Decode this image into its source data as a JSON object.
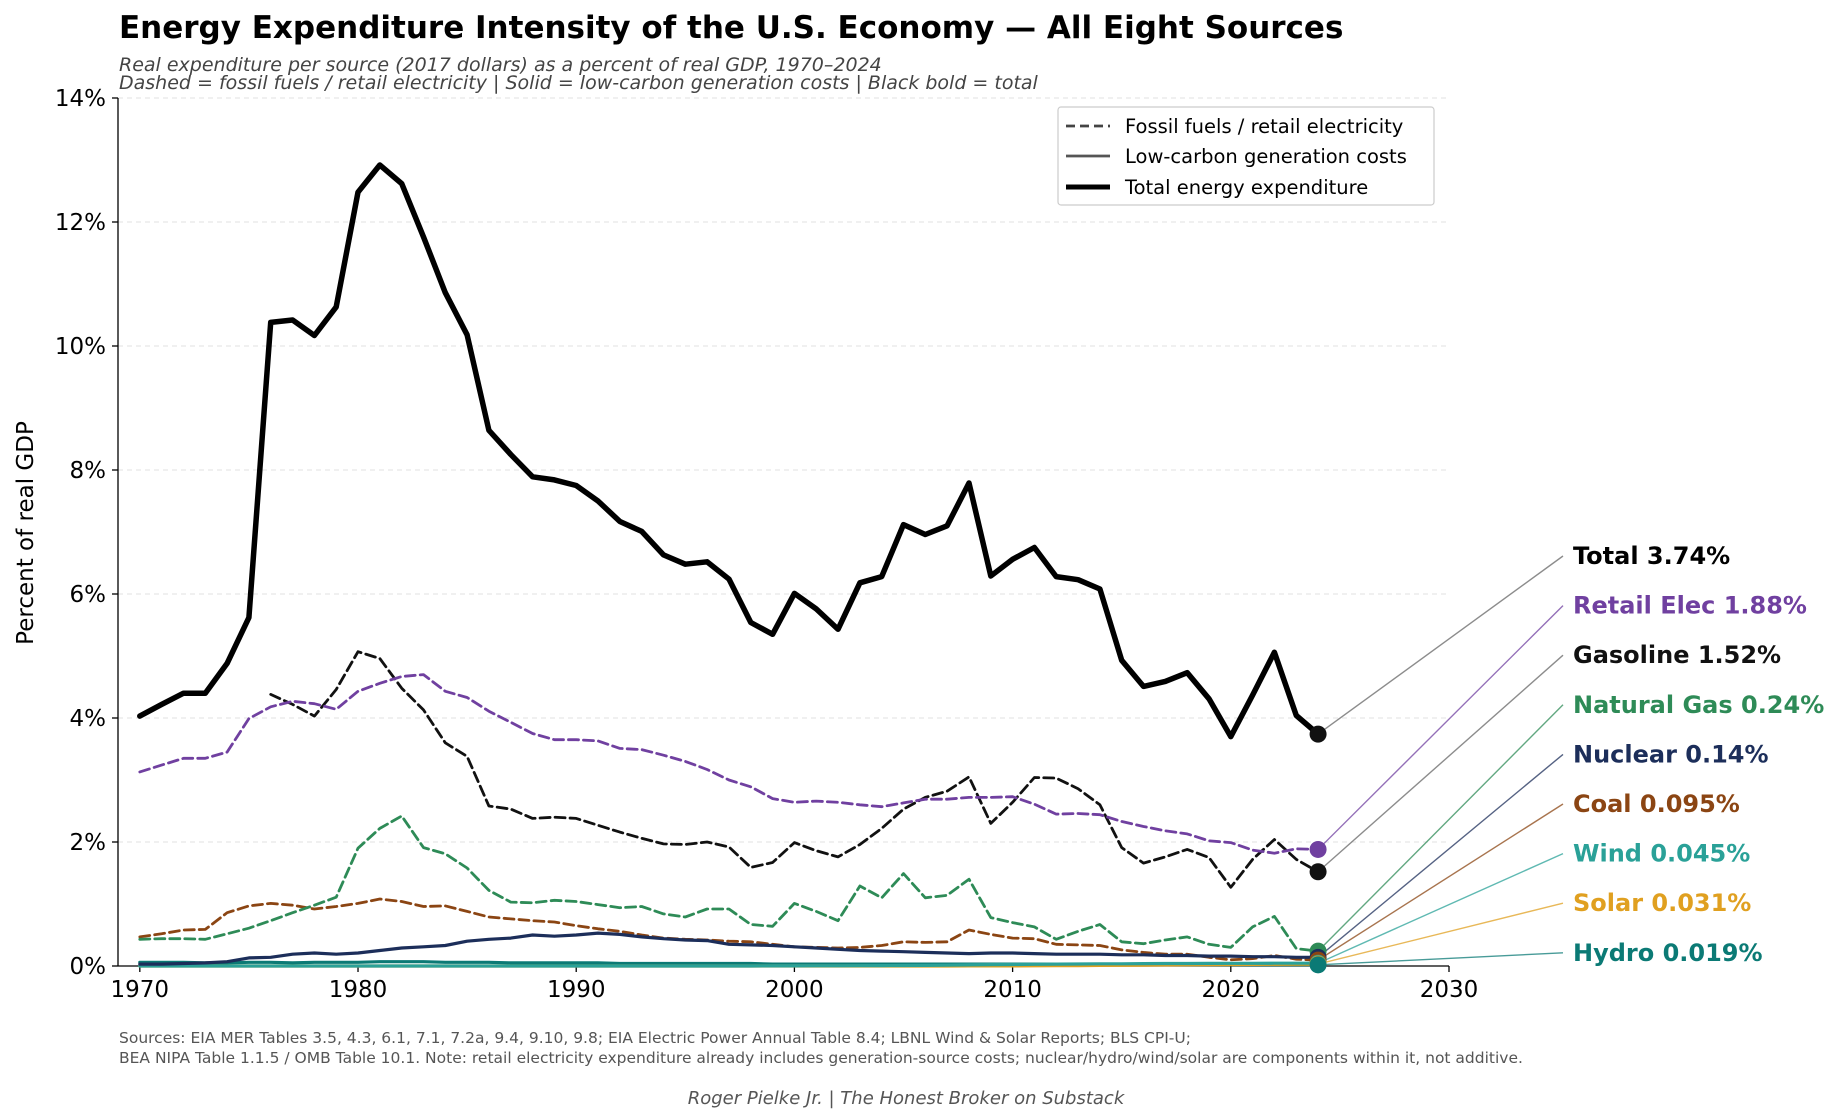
{
  "chart_data": {
    "type": "line",
    "title": "Energy Expenditure Intensity of the U.S. Economy — All Eight Sources",
    "subtitle_lines": [
      "Real expenditure per source (2017 dollars) as a percent of real GDP, 1970–2024",
      "Dashed = fossil fuels / retail electricity  |  Solid = low-carbon generation costs  |  Black bold = total"
    ],
    "xlabel": "",
    "ylabel": "Percent of real GDP",
    "xlim": [
      1969,
      2030
    ],
    "ylim": [
      0,
      14
    ],
    "x_ticks": [
      1970,
      1980,
      1990,
      2000,
      2010,
      2020,
      2030
    ],
    "x_tick_labels": [
      "1970",
      "1980",
      "1990",
      "2000",
      "2010",
      "2020",
      "2030"
    ],
    "y_ticks": [
      0,
      2,
      4,
      6,
      8,
      10,
      12,
      14
    ],
    "y_tick_labels": [
      "0%",
      "2%",
      "4%",
      "6%",
      "8%",
      "10%",
      "12%",
      "14%"
    ],
    "grid": "horizontal dashed",
    "legend_position": "top-right",
    "legend": [
      {
        "label": "Fossil fuels / retail electricity",
        "style": "dashed"
      },
      {
        "label": "Low-carbon generation costs",
        "style": "solid"
      },
      {
        "label": "Total energy expenditure",
        "style": "bold"
      }
    ],
    "series": [
      {
        "name": "Total",
        "label": "Total  3.74%",
        "color": "#000000",
        "style": "bold",
        "start": 1970,
        "values": [
          4.03,
          4.22,
          4.4,
          4.4,
          4.88,
          5.62,
          10.38,
          10.42,
          10.17,
          10.63,
          12.48,
          12.92,
          12.62,
          11.76,
          10.86,
          10.18,
          8.64,
          8.25,
          7.89,
          7.84,
          7.75,
          7.5,
          7.17,
          7.01,
          6.63,
          6.48,
          6.52,
          6.24,
          5.54,
          5.35,
          6.01,
          5.76,
          5.43,
          6.18,
          6.28,
          7.12,
          6.96,
          7.1,
          7.79,
          6.29,
          6.56,
          6.75,
          6.28,
          6.23,
          6.08,
          4.93,
          4.51,
          4.59,
          4.73,
          4.31,
          3.7,
          4.37,
          5.06,
          4.04,
          3.74
        ]
      },
      {
        "name": "Retail Elec",
        "label": "Retail Elec  1.88%",
        "color": "#7040a0",
        "style": "dashed",
        "start": 1970,
        "values": [
          3.13,
          3.24,
          3.35,
          3.35,
          3.45,
          3.99,
          4.18,
          4.27,
          4.23,
          4.14,
          4.43,
          4.56,
          4.67,
          4.7,
          4.43,
          4.33,
          4.11,
          3.93,
          3.75,
          3.65,
          3.65,
          3.63,
          3.51,
          3.49,
          3.4,
          3.3,
          3.17,
          3.0,
          2.89,
          2.7,
          2.64,
          2.66,
          2.64,
          2.6,
          2.57,
          2.63,
          2.69,
          2.69,
          2.72,
          2.72,
          2.73,
          2.61,
          2.45,
          2.46,
          2.44,
          2.33,
          2.25,
          2.18,
          2.13,
          2.02,
          1.99,
          1.87,
          1.82,
          1.89,
          1.88
        ]
      },
      {
        "name": "Gasoline",
        "label": "Gasoline  1.52%",
        "color": "#111111",
        "style": "dashed",
        "start": 1976,
        "values": [
          4.38,
          4.22,
          4.03,
          4.46,
          5.07,
          4.96,
          4.48,
          4.13,
          3.6,
          3.38,
          2.58,
          2.53,
          2.38,
          2.4,
          2.38,
          2.27,
          2.16,
          2.06,
          1.97,
          1.96,
          2.0,
          1.92,
          1.59,
          1.67,
          1.99,
          1.86,
          1.76,
          1.96,
          2.22,
          2.53,
          2.72,
          2.82,
          3.05,
          2.3,
          2.64,
          3.04,
          3.03,
          2.86,
          2.6,
          1.91,
          1.66,
          1.76,
          1.88,
          1.75,
          1.27,
          1.72,
          2.04,
          1.72,
          1.52
        ]
      },
      {
        "name": "Natural Gas",
        "label": "Natural Gas  0.24%",
        "color": "#2e8b57",
        "style": "dashed",
        "start": 1970,
        "values": [
          0.43,
          0.44,
          0.44,
          0.43,
          0.52,
          0.61,
          0.73,
          0.86,
          0.98,
          1.11,
          1.9,
          2.22,
          2.42,
          1.91,
          1.81,
          1.58,
          1.22,
          1.03,
          1.02,
          1.06,
          1.04,
          0.99,
          0.94,
          0.96,
          0.84,
          0.79,
          0.92,
          0.92,
          0.67,
          0.64,
          1.01,
          0.88,
          0.73,
          1.29,
          1.1,
          1.49,
          1.1,
          1.14,
          1.4,
          0.78,
          0.7,
          0.63,
          0.43,
          0.56,
          0.67,
          0.39,
          0.36,
          0.42,
          0.47,
          0.35,
          0.3,
          0.63,
          0.8,
          0.28,
          0.24
        ]
      },
      {
        "name": "Nuclear",
        "label": "Nuclear  0.14%",
        "color": "#1c2e5a",
        "style": "solid",
        "start": 1970,
        "values": [
          0.03,
          0.03,
          0.04,
          0.05,
          0.07,
          0.13,
          0.14,
          0.19,
          0.21,
          0.19,
          0.21,
          0.25,
          0.29,
          0.31,
          0.33,
          0.4,
          0.43,
          0.45,
          0.5,
          0.48,
          0.5,
          0.53,
          0.51,
          0.47,
          0.44,
          0.42,
          0.41,
          0.35,
          0.34,
          0.33,
          0.31,
          0.29,
          0.27,
          0.25,
          0.24,
          0.23,
          0.22,
          0.21,
          0.2,
          0.21,
          0.21,
          0.2,
          0.19,
          0.19,
          0.19,
          0.18,
          0.18,
          0.17,
          0.17,
          0.16,
          0.16,
          0.15,
          0.15,
          0.14,
          0.14
        ]
      },
      {
        "name": "Coal",
        "label": "Coal  0.095%",
        "color": "#8b4513",
        "style": "dashed",
        "start": 1970,
        "values": [
          0.47,
          0.52,
          0.58,
          0.59,
          0.86,
          0.97,
          1.01,
          0.98,
          0.92,
          0.96,
          1.01,
          1.08,
          1.04,
          0.96,
          0.97,
          0.88,
          0.79,
          0.76,
          0.73,
          0.71,
          0.65,
          0.6,
          0.56,
          0.5,
          0.45,
          0.43,
          0.42,
          0.4,
          0.39,
          0.35,
          0.31,
          0.3,
          0.29,
          0.3,
          0.33,
          0.39,
          0.38,
          0.39,
          0.58,
          0.51,
          0.45,
          0.44,
          0.35,
          0.34,
          0.33,
          0.26,
          0.22,
          0.19,
          0.19,
          0.14,
          0.1,
          0.12,
          0.17,
          0.11,
          0.095
        ]
      },
      {
        "name": "Wind",
        "label": "Wind  0.045%",
        "color": "#2aa198",
        "style": "solid",
        "start": 1970,
        "values": [
          0,
          0,
          0,
          0,
          0,
          0,
          0,
          0,
          0,
          0,
          0,
          0,
          0,
          0,
          0,
          0,
          0,
          0,
          0,
          0,
          0,
          0,
          0,
          0,
          0,
          0,
          0,
          0,
          0,
          0.001,
          0.002,
          0.003,
          0.004,
          0.005,
          0.006,
          0.008,
          0.01,
          0.013,
          0.018,
          0.022,
          0.025,
          0.027,
          0.03,
          0.033,
          0.035,
          0.036,
          0.038,
          0.04,
          0.041,
          0.042,
          0.043,
          0.044,
          0.045,
          0.045,
          0.045
        ]
      },
      {
        "name": "Solar",
        "label": "Solar  0.031%",
        "color": "#e0a020",
        "style": "solid",
        "start": 1970,
        "values": [
          0,
          0,
          0,
          0,
          0,
          0,
          0,
          0,
          0,
          0,
          0,
          0,
          0,
          0,
          0,
          0,
          0,
          0,
          0,
          0,
          0,
          0,
          0,
          0,
          0,
          0,
          0,
          0,
          0,
          0,
          0,
          0,
          0,
          0,
          0,
          0,
          0,
          0,
          0.001,
          0.001,
          0.002,
          0.003,
          0.005,
          0.007,
          0.01,
          0.012,
          0.015,
          0.018,
          0.02,
          0.022,
          0.024,
          0.026,
          0.028,
          0.03,
          0.031
        ]
      },
      {
        "name": "Hydro",
        "label": "Hydro  0.019%",
        "color": "#0b7a75",
        "style": "solid",
        "start": 1970,
        "values": [
          0.06,
          0.06,
          0.06,
          0.05,
          0.05,
          0.06,
          0.06,
          0.05,
          0.06,
          0.06,
          0.06,
          0.07,
          0.07,
          0.07,
          0.06,
          0.06,
          0.06,
          0.05,
          0.05,
          0.05,
          0.05,
          0.05,
          0.04,
          0.04,
          0.04,
          0.04,
          0.04,
          0.04,
          0.04,
          0.03,
          0.03,
          0.03,
          0.03,
          0.03,
          0.03,
          0.03,
          0.03,
          0.03,
          0.03,
          0.03,
          0.03,
          0.03,
          0.03,
          0.02,
          0.02,
          0.02,
          0.02,
          0.02,
          0.02,
          0.02,
          0.02,
          0.02,
          0.02,
          0.02,
          0.019
        ]
      }
    ],
    "end_labels_order": [
      "Total",
      "Retail Elec",
      "Gasoline",
      "Natural Gas",
      "Nuclear",
      "Coal",
      "Wind",
      "Solar",
      "Hydro"
    ],
    "sources": [
      "Sources: EIA MER Tables 3.5, 4.3, 6.1, 7.1, 7.2a, 9.4, 9.10, 9.8; EIA Electric Power Annual Table 8.4; LBNL Wind & Solar Reports; BLS CPI-U;",
      "BEA NIPA Table 1.1.5 / OMB Table 10.1.  Note: retail electricity expenditure already includes generation-source costs; nuclear/hydro/wind/solar are components within it, not additive."
    ],
    "credit": "Roger Pielke Jr.  |  The Honest Broker on Substack"
  }
}
